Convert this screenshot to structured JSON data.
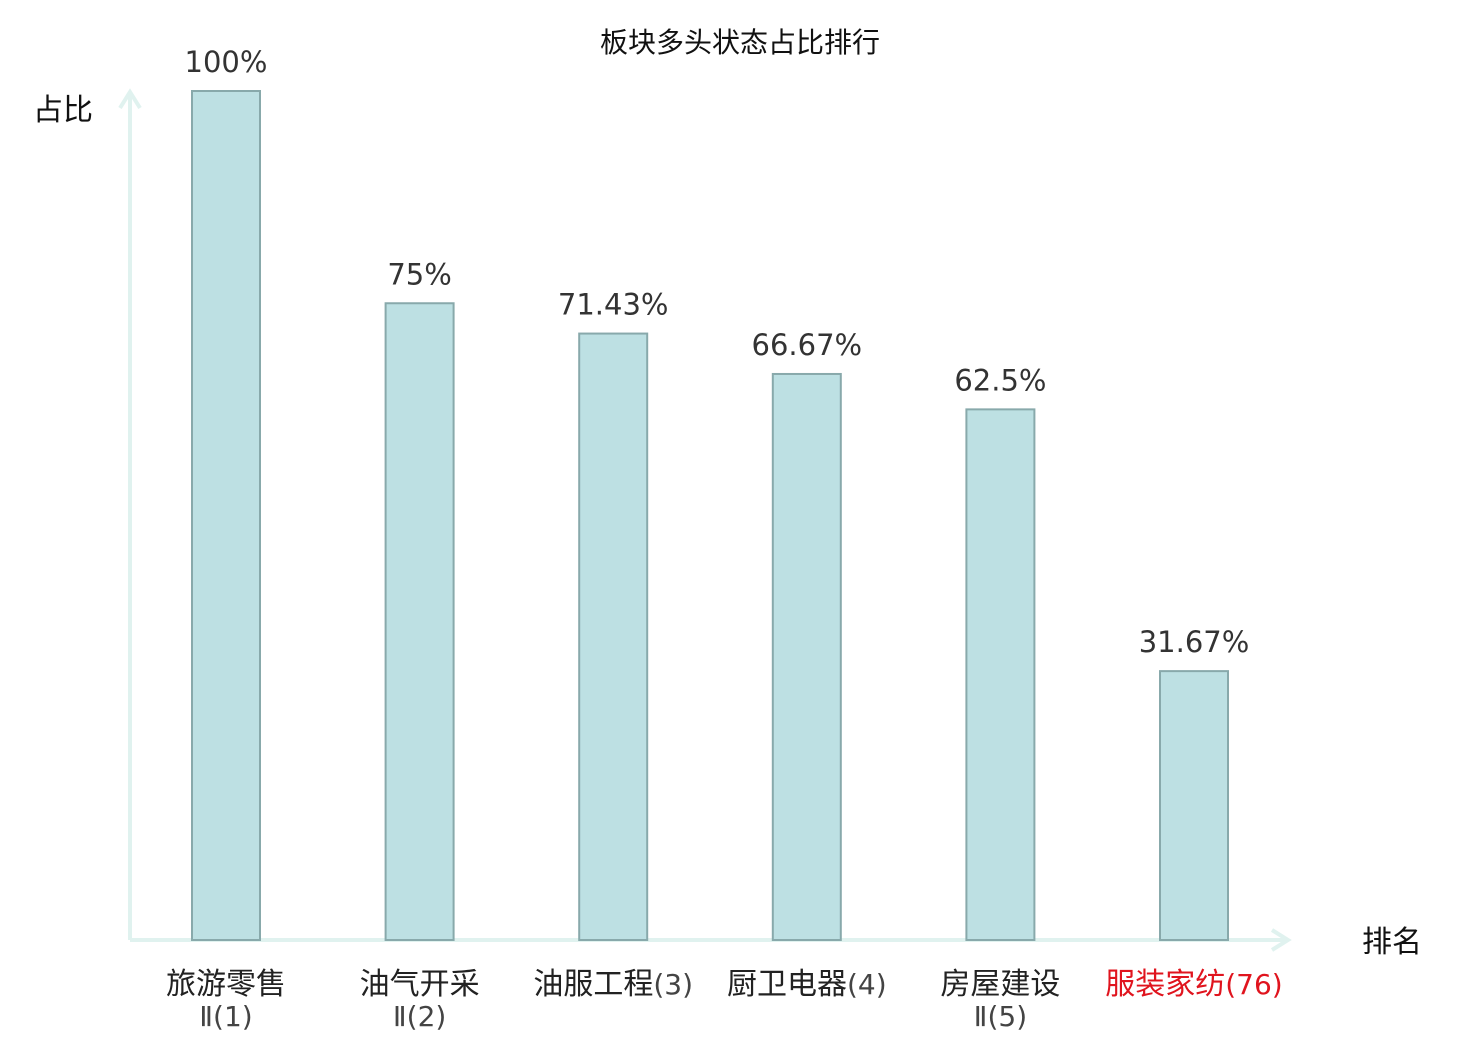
{
  "chart_data": {
    "type": "bar",
    "title": "板块多头状态占比排行",
    "ylabel": "占比",
    "xlabel": "排名",
    "ylim": [
      0,
      100
    ],
    "grid": false,
    "categories": [
      {
        "name": "旅游零售",
        "rank": "Ⅱ(1)",
        "highlight": false
      },
      {
        "name": "油气开采",
        "rank": "Ⅱ(2)",
        "highlight": false
      },
      {
        "name": "油服工程",
        "rank": "(3)",
        "highlight": false
      },
      {
        "name": "厨卫电器",
        "rank": "(4)",
        "highlight": false
      },
      {
        "name": "房屋建设",
        "rank": "Ⅱ(5)",
        "highlight": false
      },
      {
        "name": "服装家纺",
        "rank": "(76)",
        "highlight": true
      }
    ],
    "values": [
      100,
      75,
      71.43,
      66.67,
      62.5,
      31.67
    ],
    "value_labels": [
      "100%",
      "75%",
      "71.43%",
      "66.67%",
      "62.5%",
      "31.67%"
    ]
  },
  "colors": {
    "bar_fill": "#bde0e3",
    "bar_stroke": "#88a9ab",
    "axis": "#e0f2ef",
    "highlight": "#e0141e"
  }
}
